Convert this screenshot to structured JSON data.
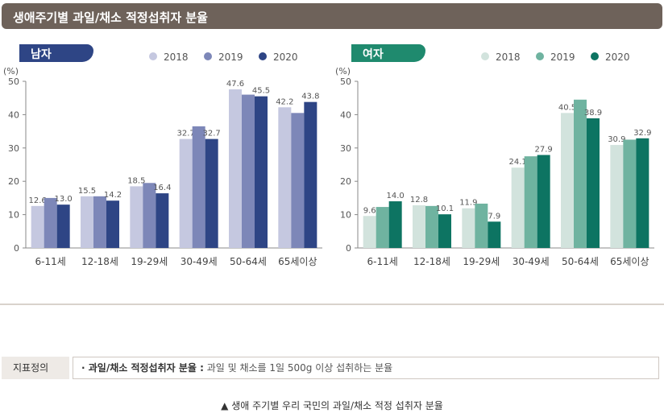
{
  "header": {
    "title": "생애주기별 과일/채소 적정섭취자 분율"
  },
  "chart_data": [
    {
      "type": "bar",
      "panel_label": "남자",
      "unit_label": "(%)",
      "categories": [
        "6-11세",
        "12-18세",
        "19-29세",
        "30-49세",
        "50-64세",
        "65세이상"
      ],
      "ylim": [
        0,
        50
      ],
      "yticks": [
        0,
        10,
        20,
        30,
        40,
        50
      ],
      "grid": false,
      "legend_position": "top-right",
      "series": [
        {
          "name": "2018",
          "color": "#c5c8e0",
          "values": [
            12.6,
            15.5,
            18.5,
            32.7,
            47.6,
            42.2
          ],
          "labeled": [
            true,
            true,
            true,
            true,
            true,
            true
          ]
        },
        {
          "name": "2019",
          "color": "#7d87b8",
          "values": [
            15.0,
            15.5,
            19.5,
            36.5,
            46.0,
            40.5
          ],
          "labeled": [
            false,
            false,
            false,
            false,
            false,
            false
          ]
        },
        {
          "name": "2020",
          "color": "#2e4585",
          "values": [
            13.0,
            14.2,
            16.4,
            32.7,
            45.5,
            43.8
          ],
          "labeled": [
            true,
            true,
            true,
            true,
            true,
            true
          ]
        }
      ]
    },
    {
      "type": "bar",
      "panel_label": "여자",
      "unit_label": "(%)",
      "categories": [
        "6-11세",
        "12-18세",
        "19-29세",
        "30-49세",
        "50-64세",
        "65세이상"
      ],
      "ylim": [
        0,
        50
      ],
      "yticks": [
        0,
        10,
        20,
        30,
        40,
        50
      ],
      "grid": false,
      "legend_position": "top-right",
      "series": [
        {
          "name": "2018",
          "color": "#d2e3dd",
          "values": [
            9.6,
            12.8,
            11.9,
            24.1,
            40.5,
            30.9
          ],
          "labeled": [
            true,
            true,
            true,
            true,
            true,
            true
          ]
        },
        {
          "name": "2019",
          "color": "#6fb3a0",
          "values": [
            12.3,
            12.6,
            13.3,
            27.5,
            44.5,
            32.5
          ],
          "labeled": [
            false,
            false,
            false,
            false,
            false,
            false
          ]
        },
        {
          "name": "2020",
          "color": "#0d7462",
          "values": [
            14.0,
            10.1,
            7.9,
            27.9,
            38.9,
            32.9
          ],
          "labeled": [
            true,
            true,
            true,
            true,
            true,
            true
          ]
        }
      ]
    }
  ],
  "panels_style": [
    {
      "badge_color": "#2e4585"
    },
    {
      "badge_color": "#1f8a6e"
    }
  ],
  "definition": {
    "label": "지표정의",
    "term": "· 과일/채소 적정섭취자 분율 :",
    "text": " 과일 및 채소를 1일 500g 이상 섭취하는 분율"
  },
  "caption": "▲ 생애 주기별 우리 국민의 과일/채소 적정 섭취자 분율"
}
